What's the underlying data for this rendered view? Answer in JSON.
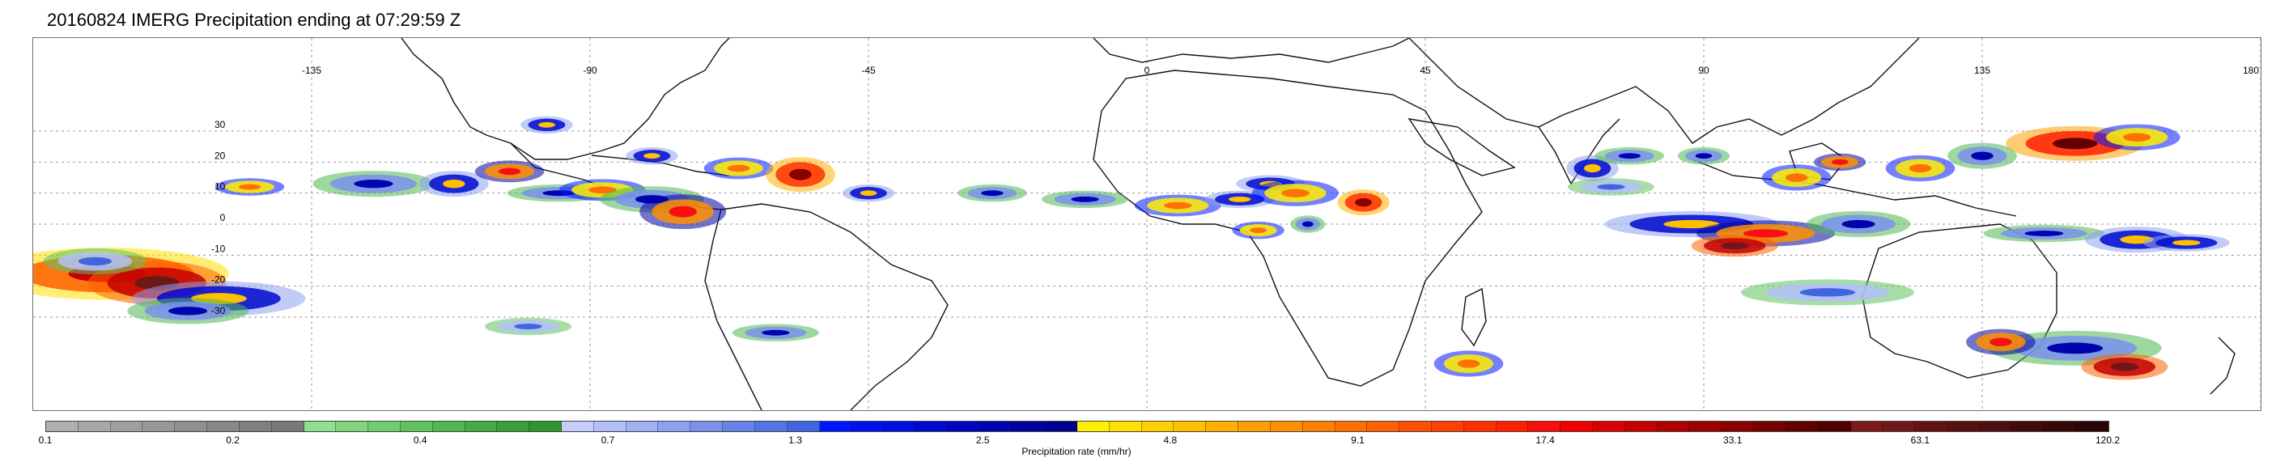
{
  "title": "20160824 IMERG Precipitation ending at 07:29:59 Z",
  "map": {
    "projection": "equirectangular",
    "lon_range": [
      -180,
      180
    ],
    "lat_range": [
      -60,
      60
    ],
    "gridlines": true,
    "lon_ticks": [
      {
        "value": -135,
        "label": "-135"
      },
      {
        "value": -90,
        "label": "-90"
      },
      {
        "value": -45,
        "label": "-45"
      },
      {
        "value": 0,
        "label": "0"
      },
      {
        "value": 45,
        "label": "45"
      },
      {
        "value": 90,
        "label": "90"
      },
      {
        "value": 135,
        "label": "135"
      },
      {
        "value": 180,
        "label": "180"
      }
    ],
    "lat_ticks": [
      {
        "value": 30,
        "label": "30"
      },
      {
        "value": 20,
        "label": "20"
      },
      {
        "value": 10,
        "label": "10"
      },
      {
        "value": 0,
        "label": "0"
      },
      {
        "value": -10,
        "label": "-10"
      },
      {
        "value": -20,
        "label": "-20"
      },
      {
        "value": -30,
        "label": "-30"
      }
    ],
    "precip_cells": [
      {
        "lon": -168,
        "lat": -16,
        "rx": 14,
        "ry": 6,
        "rate": 25
      },
      {
        "lon": -160,
        "lat": -19,
        "rx": 8,
        "ry": 5,
        "rate": 60
      },
      {
        "lon": -150,
        "lat": -24,
        "rx": 10,
        "ry": 4,
        "rate": 5
      },
      {
        "lon": -170,
        "lat": -12,
        "rx": 6,
        "ry": 3,
        "rate": 1.3
      },
      {
        "lon": -155,
        "lat": -28,
        "rx": 7,
        "ry": 3,
        "rate": 2.5
      },
      {
        "lon": -145,
        "lat": 12,
        "rx": 4,
        "ry": 2,
        "rate": 9
      },
      {
        "lon": -125,
        "lat": 13,
        "rx": 7,
        "ry": 3,
        "rate": 2.5
      },
      {
        "lon": -112,
        "lat": 13,
        "rx": 4,
        "ry": 3,
        "rate": 5
      },
      {
        "lon": -103,
        "lat": 17,
        "rx": 4,
        "ry": 2.5,
        "rate": 17
      },
      {
        "lon": -95,
        "lat": 10,
        "rx": 6,
        "ry": 2,
        "rate": 2.5
      },
      {
        "lon": -88,
        "lat": 11,
        "rx": 5,
        "ry": 2.5,
        "rate": 9
      },
      {
        "lon": -80,
        "lat": 8,
        "rx": 6,
        "ry": 3,
        "rate": 2.5
      },
      {
        "lon": -75,
        "lat": 4,
        "rx": 5,
        "ry": 4,
        "rate": 17
      },
      {
        "lon": -66,
        "lat": 18,
        "rx": 4,
        "ry": 2.5,
        "rate": 9
      },
      {
        "lon": -80,
        "lat": 22,
        "rx": 3,
        "ry": 2,
        "rate": 5
      },
      {
        "lon": -97,
        "lat": 32,
        "rx": 3,
        "ry": 2,
        "rate": 5
      },
      {
        "lon": -56,
        "lat": 16,
        "rx": 4,
        "ry": 4,
        "rate": 33
      },
      {
        "lon": -45,
        "lat": 10,
        "rx": 3,
        "ry": 2,
        "rate": 5
      },
      {
        "lon": -25,
        "lat": 10,
        "rx": 4,
        "ry": 2,
        "rate": 2.5
      },
      {
        "lon": -10,
        "lat": 8,
        "rx": 5,
        "ry": 2,
        "rate": 2.5
      },
      {
        "lon": 5,
        "lat": 6,
        "rx": 5,
        "ry": 2.5,
        "rate": 9
      },
      {
        "lon": 15,
        "lat": 8,
        "rx": 4,
        "ry": 2,
        "rate": 5
      },
      {
        "lon": 20,
        "lat": 13,
        "rx": 4,
        "ry": 2,
        "rate": 5
      },
      {
        "lon": 24,
        "lat": 10,
        "rx": 5,
        "ry": 3,
        "rate": 9
      },
      {
        "lon": 35,
        "lat": 7,
        "rx": 3,
        "ry": 3,
        "rate": 33
      },
      {
        "lon": 18,
        "lat": -2,
        "rx": 3,
        "ry": 2,
        "rate": 9
      },
      {
        "lon": 26,
        "lat": 0,
        "rx": 2,
        "ry": 2,
        "rate": 2.5
      },
      {
        "lon": 72,
        "lat": 18,
        "rx": 3,
        "ry": 3,
        "rate": 5
      },
      {
        "lon": 78,
        "lat": 22,
        "rx": 4,
        "ry": 2,
        "rate": 2.5
      },
      {
        "lon": 75,
        "lat": 12,
        "rx": 5,
        "ry": 2,
        "rate": 1.3
      },
      {
        "lon": 90,
        "lat": 22,
        "rx": 3,
        "ry": 2,
        "rate": 2.5
      },
      {
        "lon": 105,
        "lat": 15,
        "rx": 4,
        "ry": 3,
        "rate": 9
      },
      {
        "lon": 112,
        "lat": 20,
        "rx": 3,
        "ry": 2,
        "rate": 17
      },
      {
        "lon": 125,
        "lat": 18,
        "rx": 4,
        "ry": 3,
        "rate": 9
      },
      {
        "lon": 135,
        "lat": 22,
        "rx": 4,
        "ry": 3,
        "rate": 2.5
      },
      {
        "lon": 150,
        "lat": 26,
        "rx": 8,
        "ry": 4,
        "rate": 40
      },
      {
        "lon": 160,
        "lat": 28,
        "rx": 5,
        "ry": 3,
        "rate": 9
      },
      {
        "lon": 88,
        "lat": 0,
        "rx": 10,
        "ry": 3,
        "rate": 5
      },
      {
        "lon": 100,
        "lat": -3,
        "rx": 8,
        "ry": 3,
        "rate": 17
      },
      {
        "lon": 95,
        "lat": -7,
        "rx": 5,
        "ry": 2.5,
        "rate": 60
      },
      {
        "lon": 115,
        "lat": 0,
        "rx": 6,
        "ry": 3,
        "rate": 2.5
      },
      {
        "lon": 145,
        "lat": -3,
        "rx": 7,
        "ry": 2,
        "rate": 2.5
      },
      {
        "lon": 160,
        "lat": -5,
        "rx": 6,
        "ry": 3,
        "rate": 5
      },
      {
        "lon": 168,
        "lat": -6,
        "rx": 5,
        "ry": 2,
        "rate": 5
      },
      {
        "lon": 110,
        "lat": -22,
        "rx": 10,
        "ry": 3,
        "rate": 1.3
      },
      {
        "lon": 150,
        "lat": -40,
        "rx": 10,
        "ry": 4,
        "rate": 2.5
      },
      {
        "lon": 158,
        "lat": -46,
        "rx": 5,
        "ry": 3,
        "rate": 60
      },
      {
        "lon": 138,
        "lat": -38,
        "rx": 4,
        "ry": 3,
        "rate": 17
      },
      {
        "lon": 52,
        "lat": -45,
        "rx": 4,
        "ry": 3,
        "rate": 9
      },
      {
        "lon": -60,
        "lat": -35,
        "rx": 5,
        "ry": 2,
        "rate": 2.5
      },
      {
        "lon": -100,
        "lat": -33,
        "rx": 5,
        "ry": 2,
        "rate": 1.3
      }
    ]
  },
  "colorbar": {
    "colors": [
      "#b0b0b0",
      "#a8a8a8",
      "#a0a0a0",
      "#989898",
      "#909090",
      "#888888",
      "#808080",
      "#787878",
      "#8fe08f",
      "#7fd67f",
      "#6fcc6f",
      "#5fc25f",
      "#50b850",
      "#42ad42",
      "#36a236",
      "#2b972b",
      "#c6cdfb",
      "#b3bff8",
      "#a0b0f4",
      "#8da1f0",
      "#7a92ec",
      "#6783e8",
      "#5474e4",
      "#4165e0",
      "#0018ff",
      "#0012f0",
      "#000de0",
      "#0009cf",
      "#0006bf",
      "#0004ae",
      "#00039e",
      "#00028d",
      "#fff000",
      "#ffe000",
      "#ffd000",
      "#ffc000",
      "#ffb000",
      "#ffa000",
      "#ff9000",
      "#ff8000",
      "#ff7000",
      "#ff6000",
      "#ff5000",
      "#ff4000",
      "#ff3000",
      "#ff2000",
      "#f81010",
      "#f00000",
      "#d80000",
      "#c40000",
      "#b00000",
      "#9c0000",
      "#880000",
      "#740000",
      "#620000",
      "#500000",
      "#7a1a1a",
      "#6e1717",
      "#621414",
      "#571111",
      "#4c0e0e",
      "#410b0b",
      "#360808",
      "#2b0505"
    ],
    "ticks": [
      {
        "value": 0.1,
        "label": "0.1",
        "frac": 0.0
      },
      {
        "value": 0.2,
        "label": "0.2",
        "frac": 0.125
      },
      {
        "value": 0.4,
        "label": "0.4",
        "frac": 0.25
      },
      {
        "value": 0.7,
        "label": "0.7",
        "frac": 0.375
      },
      {
        "value": 1.3,
        "label": "1.3",
        "frac": 0.5
      },
      {
        "value": 2.5,
        "label": "2.5",
        "frac": 0.625
      },
      {
        "value": 4.8,
        "label": "4.8",
        "frac": 0.75
      },
      {
        "value": 9.1,
        "label": "9.1",
        "frac": 0.875
      },
      {
        "value": 17.4,
        "label": "17.4",
        "frac": 1.0
      },
      {
        "value": 33.1,
        "label": "33.1",
        "frac": 1.125
      },
      {
        "value": 63.1,
        "label": "63.1",
        "frac": 1.25
      },
      {
        "value": 120.2,
        "label": "120.2",
        "frac": 1.375
      }
    ],
    "label": "Precipitation rate (mm/hr)"
  }
}
